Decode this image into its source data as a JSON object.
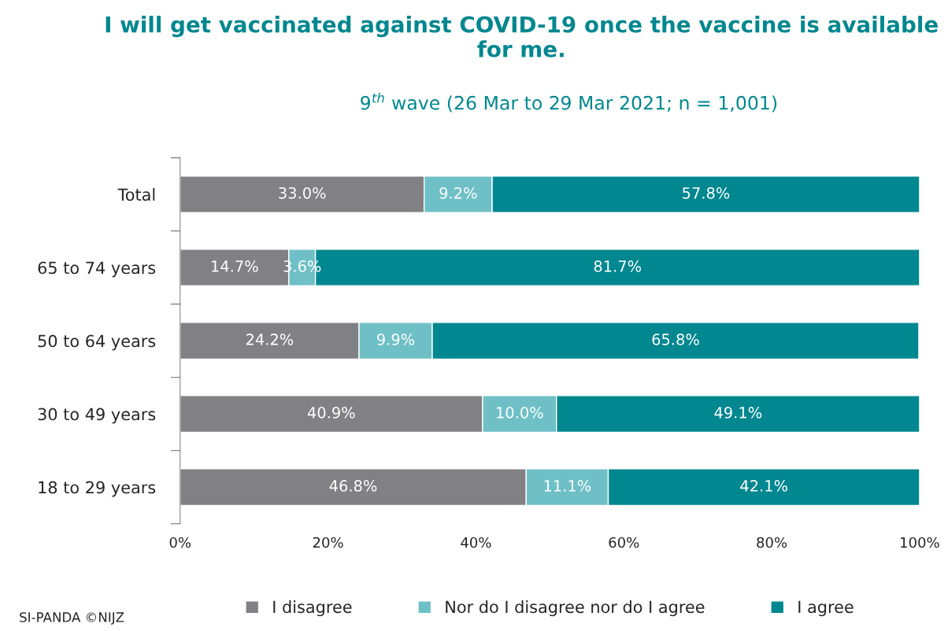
{
  "chart_data": {
    "type": "bar",
    "orientation": "horizontal",
    "stacked": true,
    "title": "I will get vaccinated against COVID-19 once the vaccine is available for me.",
    "subtitle": "9$^{th}$ wave (26 Mar to 29 Mar 2021; n = 1,001)",
    "categories": [
      "Total",
      "65 to 74 years",
      "50 to 64 years",
      "30 to 49 years",
      "18 to 29 years"
    ],
    "series": [
      {
        "name": "I disagree",
        "color": "#818185",
        "values": [
          33.0,
          14.7,
          24.2,
          40.9,
          46.8
        ],
        "value_labels": [
          "33.0%",
          "14.7%",
          "24.2%",
          "40.9%",
          "46.8%"
        ]
      },
      {
        "name": "Nor do I disagree nor do I agree",
        "color": "#6fc0c6",
        "values": [
          9.2,
          3.6,
          9.9,
          10.0,
          11.1
        ],
        "value_labels": [
          "9.2%",
          "3.6%",
          "9.9%",
          "10.0%",
          "11.1%"
        ]
      },
      {
        "name": "I agree",
        "color": "#00878f",
        "values": [
          57.8,
          81.7,
          65.8,
          49.1,
          42.1
        ],
        "value_labels": [
          "57.8%",
          "81.7%",
          "65.8%",
          "49.1%",
          "42.1%"
        ]
      }
    ],
    "xlim": [
      0,
      100
    ],
    "xticks": [
      {
        "value": 0,
        "label": "0%"
      },
      {
        "value": 20,
        "label": "20%"
      },
      {
        "value": 40,
        "label": "40%"
      },
      {
        "value": 60,
        "label": "60%"
      },
      {
        "value": 80,
        "label": "80%"
      },
      {
        "value": 100,
        "label": "100%"
      }
    ],
    "grid": false,
    "legend": "bottom",
    "annotations": [
      "SI-PANDA ©NIJZ"
    ]
  }
}
